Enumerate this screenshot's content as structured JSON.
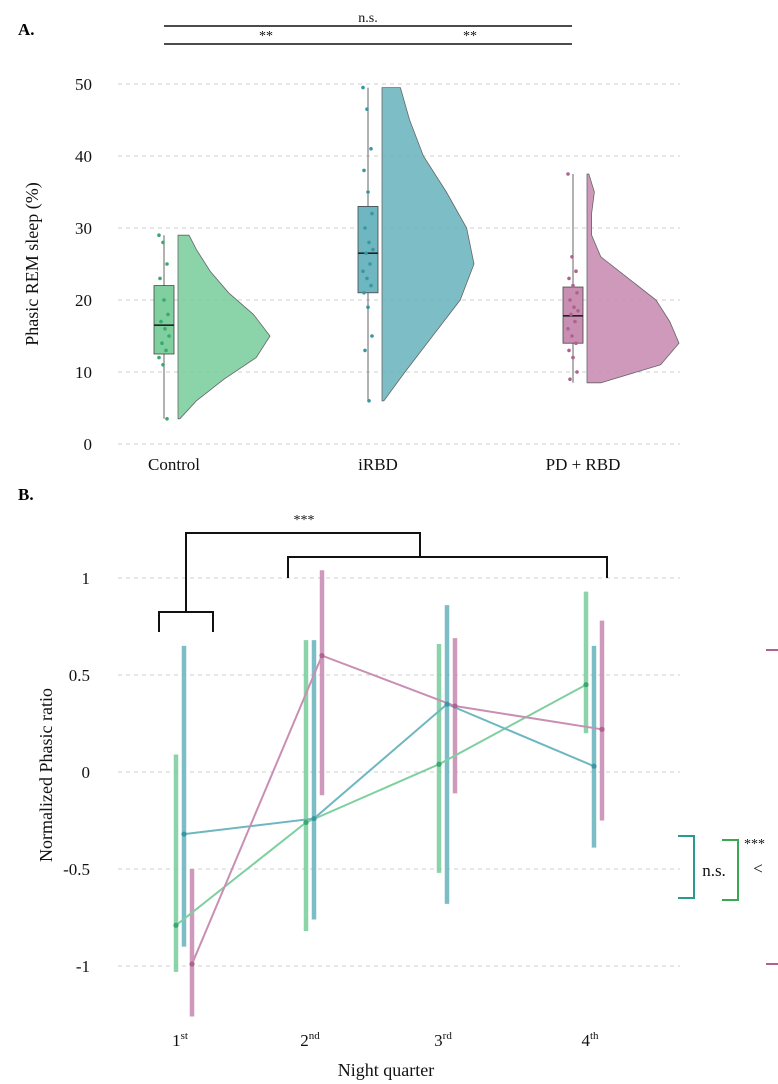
{
  "chart_data": [
    {
      "panel": "A.",
      "type": "raincloud",
      "ylabel": "Phasic REM sleep (%)",
      "xlabel": "",
      "ylim": [
        0,
        50
      ],
      "yticks": [
        "0",
        "10",
        "20",
        "30",
        "40",
        "50"
      ],
      "grid": true,
      "categories": [
        "Control",
        "iRBD",
        "PD + RBD"
      ],
      "colors": [
        "#7fcf9f",
        "#6fb7c0",
        "#c98fb3"
      ],
      "dark_colors": [
        "#3aa870",
        "#3a97a2",
        "#b0628f"
      ],
      "boxes": [
        {
          "min": 3.5,
          "q1": 12.5,
          "median": 16.5,
          "q3": 22,
          "max": 29
        },
        {
          "min": 6,
          "q1": 21,
          "median": 26.5,
          "q3": 33,
          "max": 49.5
        },
        {
          "min": 8.5,
          "q1": 14,
          "median": 17.8,
          "q3": 21.8,
          "max": 37.5
        }
      ],
      "points": [
        [
          29,
          28,
          25,
          23,
          20,
          18,
          17,
          16,
          15,
          14,
          13,
          12,
          11,
          3.5
        ],
        [
          49.5,
          46.5,
          41,
          38,
          35,
          32,
          30,
          28,
          27,
          26.5,
          25,
          24,
          23,
          22,
          21,
          19,
          15,
          13,
          6
        ],
        [
          37.5,
          26,
          24,
          23,
          22,
          21,
          20,
          19,
          18.5,
          18,
          17,
          16,
          15,
          14,
          13,
          12,
          10,
          9
        ]
      ],
      "density": [
        [
          [
            3.5,
            0.02
          ],
          [
            6,
            0.2
          ],
          [
            9,
            0.5
          ],
          [
            12,
            0.85
          ],
          [
            15,
            1.0
          ],
          [
            18,
            0.82
          ],
          [
            21,
            0.55
          ],
          [
            24,
            0.35
          ],
          [
            27,
            0.2
          ],
          [
            29,
            0.12
          ]
        ],
        [
          [
            6,
            0.02
          ],
          [
            10,
            0.25
          ],
          [
            15,
            0.55
          ],
          [
            20,
            0.85
          ],
          [
            25,
            1.0
          ],
          [
            30,
            0.92
          ],
          [
            35,
            0.7
          ],
          [
            40,
            0.45
          ],
          [
            45,
            0.3
          ],
          [
            49.5,
            0.2
          ]
        ],
        [
          [
            8.5,
            0.15
          ],
          [
            11,
            0.8
          ],
          [
            14,
            1.0
          ],
          [
            17,
            0.9
          ],
          [
            20,
            0.75
          ],
          [
            23,
            0.45
          ],
          [
            26,
            0.15
          ],
          [
            29,
            0.05
          ],
          [
            32,
            0.05
          ],
          [
            35,
            0.08
          ],
          [
            37.5,
            0.02
          ]
        ]
      ],
      "significance": [
        {
          "from": 0,
          "to": 2,
          "label": "n.s.",
          "level": 2
        },
        {
          "from": 0,
          "to": 1,
          "label": "**",
          "level": 1
        },
        {
          "from": 1,
          "to": 2,
          "label": "**",
          "level": 1
        }
      ]
    },
    {
      "panel": "B.",
      "type": "line",
      "ylabel": "Normalized Phasic ratio",
      "xlabel": "Night quarter",
      "ylim": [
        -1,
        1
      ],
      "yticks": [
        "-1",
        "-0.5",
        "0",
        "0.5",
        "1"
      ],
      "grid": true,
      "categories": [
        {
          "base": "1",
          "sup": "st"
        },
        {
          "base": "2",
          "sup": "nd"
        },
        {
          "base": "3",
          "sup": "rd"
        },
        {
          "base": "4",
          "sup": "th"
        }
      ],
      "series": [
        {
          "color": "#7fcf9f",
          "dark": "#3aa870",
          "values": [
            -0.79,
            -0.26,
            0.04,
            0.45
          ],
          "err_low": [
            -1.03,
            -0.82,
            -0.52,
            0.2
          ],
          "err_high": [
            0.09,
            0.68,
            0.66,
            0.93
          ]
        },
        {
          "color": "#6fb7c0",
          "dark": "#3a97a2",
          "values": [
            -0.32,
            -0.24,
            0.35,
            0.03
          ],
          "err_low": [
            -0.9,
            -0.76,
            -0.68,
            -0.39
          ],
          "err_high": [
            0.65,
            0.68,
            0.86,
            0.65
          ]
        },
        {
          "color": "#c98fb3",
          "dark": "#b0628f",
          "values": [
            -0.99,
            0.6,
            0.34,
            0.22
          ],
          "err_low": [
            -1.26,
            -0.12,
            -0.11,
            -0.25
          ],
          "err_high": [
            -0.5,
            1.04,
            0.69,
            0.78
          ]
        }
      ],
      "top_significance": "***",
      "right_annotations": {
        "ns": "n.s.",
        "lt": "<",
        "stars": "***"
      }
    }
  ]
}
